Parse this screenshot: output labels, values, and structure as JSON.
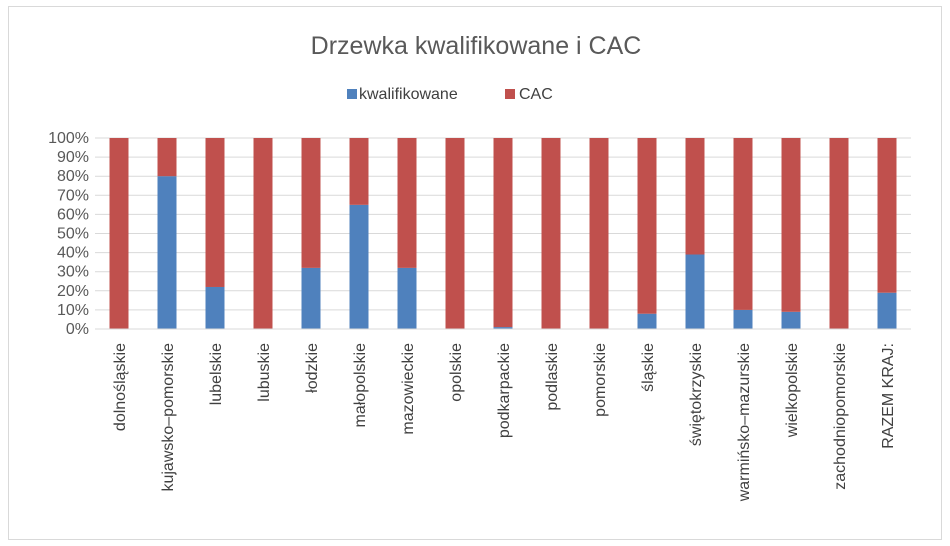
{
  "chart_data": {
    "type": "bar",
    "stacked": "percent",
    "title": "Drzewka kwalifikowane i CAC",
    "legend_position": "top",
    "grid": true,
    "ylim": [
      0,
      100
    ],
    "yticks": [
      "0%",
      "10%",
      "20%",
      "30%",
      "40%",
      "50%",
      "60%",
      "70%",
      "80%",
      "90%",
      "100%"
    ],
    "categories": [
      "dolnośląskie",
      "kujawsko–pomorskie",
      "lubelskie",
      "lubuskie",
      "łodzkie",
      "małopolskie",
      "mazowieckie",
      "opolskie",
      "podkarpackie",
      "podlaskie",
      "pomorskie",
      "śląskie",
      "świętokrzyskie",
      "warmińsko–mazurskie",
      "wielkopolskie",
      "zachodniopomorskie",
      "RAZEM KRAJ:"
    ],
    "series": [
      {
        "name": "kwalifikowane",
        "color": "#4f81bd",
        "values": [
          0,
          80,
          22,
          0,
          32,
          65,
          32,
          0,
          1,
          0,
          0,
          8,
          39,
          10,
          9,
          0,
          19
        ]
      },
      {
        "name": "CAC",
        "color": "#c0504d",
        "values": [
          100,
          20,
          78,
          100,
          68,
          35,
          68,
          100,
          99,
          100,
          100,
          92,
          61,
          90,
          91,
          100,
          81
        ]
      }
    ]
  }
}
